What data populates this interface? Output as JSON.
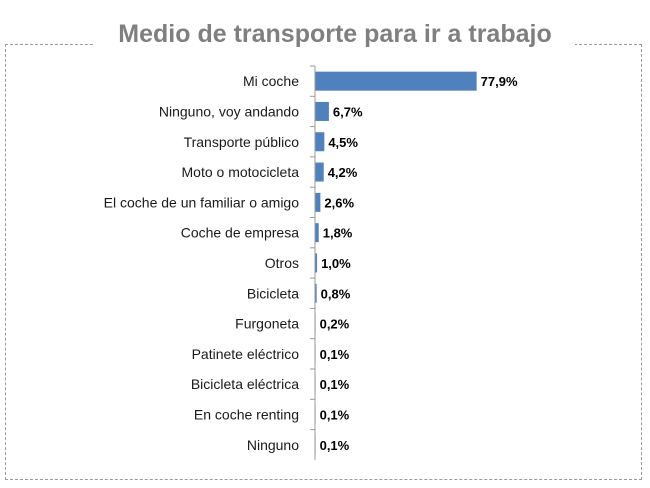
{
  "chart_data": {
    "type": "bar",
    "orientation": "horizontal",
    "title": "Medio de transporte para ir a trabajo",
    "bar_color": "#4f81bd",
    "xlim": [
      0,
      100
    ],
    "grid": false,
    "legend": "none",
    "categories": [
      "Mi coche",
      "Ninguno, voy andando",
      "Transporte público",
      "Moto o motocicleta",
      "El coche de un familiar o amigo",
      "Coche de empresa",
      "Otros",
      "Bicicleta",
      "Furgoneta",
      "Patinete eléctrico",
      "Bicicleta eléctrica",
      "En coche renting",
      "Ninguno"
    ],
    "values": [
      77.9,
      6.7,
      4.5,
      4.2,
      2.6,
      1.8,
      1.0,
      0.8,
      0.2,
      0.1,
      0.1,
      0.1,
      0.1
    ],
    "value_labels": [
      "77,9%",
      "6,7%",
      "4,5%",
      "4,2%",
      "2,6%",
      "1,8%",
      "1,0%",
      "0,8%",
      "0,2%",
      "0,1%",
      "0,1%",
      "0,1%",
      "0,1%"
    ]
  }
}
